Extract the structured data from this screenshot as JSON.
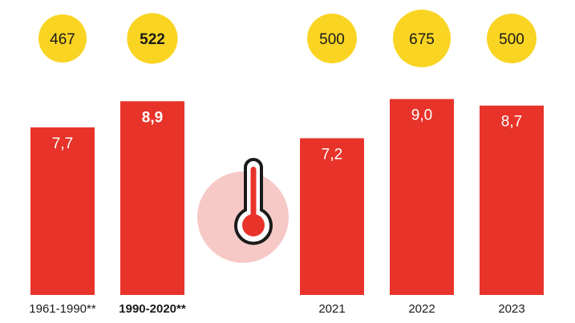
{
  "chart_data": {
    "type": "bar",
    "title": "",
    "xlabel": "",
    "ylabel": "",
    "ylim": [
      0,
      9.5
    ],
    "grid": false,
    "categories": [
      "1961-1990**",
      "1990-2020**",
      "2021",
      "2022",
      "2023"
    ],
    "values": [
      7.7,
      8.9,
      7.2,
      9.0,
      8.7
    ],
    "value_labels": [
      "7,7",
      "8,9",
      "7,2",
      "9,0",
      "8,7"
    ],
    "bubble_values": [
      467,
      522,
      500,
      675,
      500
    ],
    "bubble_labels": [
      "467",
      "522",
      "500",
      "675",
      "500"
    ],
    "highlighted_index": 1,
    "icon": "thermometer-icon",
    "colors": {
      "bar": "#e8332a",
      "bubble": "#f9d423",
      "icon_circle": "#f6c9c7",
      "icon_outline": "#1a1a1a",
      "text_dark": "#1a1a1a",
      "text_on_bar": "#ffffff"
    }
  }
}
